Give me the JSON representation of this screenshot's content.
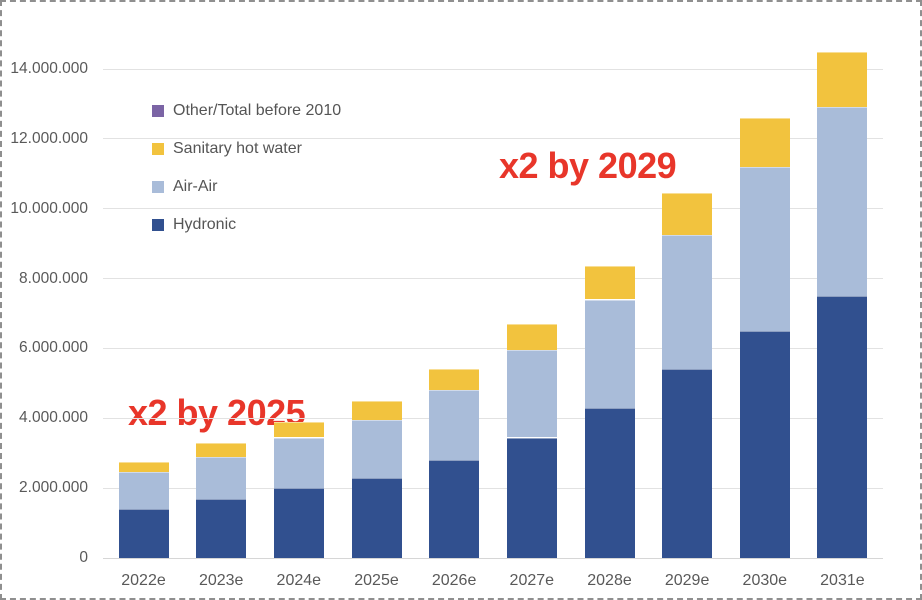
{
  "chart_data": {
    "type": "bar",
    "stacked": true,
    "title": "",
    "xlabel": "",
    "ylabel": "",
    "categories": [
      "2022e",
      "2023e",
      "2024e",
      "2025e",
      "2026e",
      "2027e",
      "2028e",
      "2029e",
      "2030e",
      "2031e"
    ],
    "series": [
      {
        "name": "Hydronic",
        "color": "#31508f",
        "values": [
          1400000,
          1700000,
          2000000,
          2300000,
          2800000,
          3450000,
          4300000,
          5400000,
          6500000,
          7500000
        ]
      },
      {
        "name": "Air-Air",
        "color": "#a9bcd9",
        "values": [
          1050000,
          1200000,
          1450000,
          1650000,
          2000000,
          2500000,
          3100000,
          3850000,
          4700000,
          5400000
        ]
      },
      {
        "name": "Sanitary hot water",
        "color": "#f2c33e",
        "values": [
          300000,
          400000,
          450000,
          550000,
          600000,
          750000,
          950000,
          1200000,
          1400000,
          1600000
        ]
      },
      {
        "name": "Other/Total before 2010",
        "color": "#7b64a5",
        "values": [
          0,
          0,
          0,
          0,
          0,
          0,
          0,
          0,
          0,
          0
        ]
      }
    ],
    "totals": [
      2750000,
      3300000,
      3900000,
      4500000,
      5400000,
      6700000,
      8350000,
      10450000,
      12600000,
      14500000
    ],
    "y_axis": {
      "min": 0,
      "max": 14000000,
      "step": 2000000,
      "grid": true,
      "tick_labels": [
        "0",
        "2.000.000",
        "4.000.000",
        "6.000.000",
        "8.000.000",
        "10.000.000",
        "12.000.000",
        "14.000.000"
      ]
    },
    "legend": {
      "position": "inside-top-left",
      "order_top_to_bottom": [
        "Other/Total before 2010",
        "Sanitary hot water",
        "Air-Air",
        "Hydronic"
      ]
    },
    "annotations": [
      {
        "text": "x2 by 2025",
        "color": "#e8362a"
      },
      {
        "text": "x2 by 2029",
        "color": "#e8362a"
      }
    ]
  }
}
